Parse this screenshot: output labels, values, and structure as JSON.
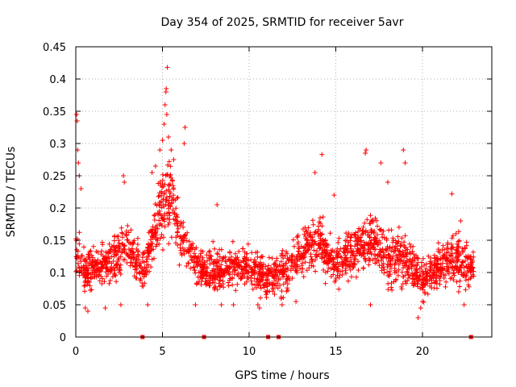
{
  "chart_data": {
    "type": "scatter",
    "title": "Day 354 of 2025, SRMTID for receiver 5avr",
    "xlabel": "GPS time / hours",
    "ylabel": "SRMTID / TECUs",
    "xlim": [
      0,
      24
    ],
    "ylim": [
      0,
      0.45
    ],
    "x_ticks": [
      0,
      5,
      10,
      15,
      20
    ],
    "x_tick_labels": [
      "0",
      "5",
      "10",
      "15",
      "20"
    ],
    "y_ticks": [
      0,
      0.05,
      0.1,
      0.15,
      0.2,
      0.25,
      0.3,
      0.35,
      0.4,
      0.45
    ],
    "y_tick_labels": [
      "0",
      "0.05",
      "0.1",
      "0.15",
      "0.2",
      "0.25",
      "0.3",
      "0.35",
      "0.4",
      "0.45"
    ],
    "grid": true,
    "marker": "plus",
    "color": "#ff0000",
    "zero_markers_x": [
      3.85,
      7.4,
      11.1,
      11.7,
      22.8
    ],
    "series": [
      {
        "name": "SRMTID",
        "trend": {
          "x": [
            0,
            0.5,
            1,
            2,
            3,
            4,
            4.5,
            5,
            5.5,
            6,
            7,
            8,
            9,
            10,
            11,
            12,
            13,
            14,
            15,
            16,
            17,
            18,
            19,
            20,
            21,
            22,
            23
          ],
          "y": [
            0.13,
            0.1,
            0.11,
            0.12,
            0.14,
            0.1,
            0.16,
            0.2,
            0.22,
            0.16,
            0.11,
            0.1,
            0.11,
            0.11,
            0.09,
            0.1,
            0.13,
            0.15,
            0.11,
            0.13,
            0.15,
            0.12,
            0.12,
            0.09,
            0.11,
            0.12,
            0.1
          ],
          "spread": [
            0.06,
            0.04,
            0.04,
            0.04,
            0.05,
            0.04,
            0.05,
            0.08,
            0.07,
            0.05,
            0.04,
            0.04,
            0.04,
            0.04,
            0.04,
            0.04,
            0.05,
            0.05,
            0.04,
            0.05,
            0.05,
            0.05,
            0.05,
            0.04,
            0.04,
            0.05,
            0.04
          ]
        },
        "n_points": 2200,
        "peaks": [
          {
            "x": 0.05,
            "y": 0.345
          },
          {
            "x": 0.08,
            "y": 0.335
          },
          {
            "x": 0.1,
            "y": 0.29
          },
          {
            "x": 0.15,
            "y": 0.27
          },
          {
            "x": 0.2,
            "y": 0.25
          },
          {
            "x": 0.3,
            "y": 0.23
          },
          {
            "x": 2.75,
            "y": 0.25
          },
          {
            "x": 2.8,
            "y": 0.24
          },
          {
            "x": 4.4,
            "y": 0.255
          },
          {
            "x": 4.6,
            "y": 0.265
          },
          {
            "x": 4.85,
            "y": 0.29
          },
          {
            "x": 5.0,
            "y": 0.305
          },
          {
            "x": 5.1,
            "y": 0.33
          },
          {
            "x": 5.15,
            "y": 0.36
          },
          {
            "x": 5.2,
            "y": 0.38
          },
          {
            "x": 5.22,
            "y": 0.385
          },
          {
            "x": 5.25,
            "y": 0.345
          },
          {
            "x": 5.28,
            "y": 0.418
          },
          {
            "x": 5.35,
            "y": 0.31
          },
          {
            "x": 5.5,
            "y": 0.29
          },
          {
            "x": 5.65,
            "y": 0.275
          },
          {
            "x": 6.3,
            "y": 0.325
          },
          {
            "x": 6.25,
            "y": 0.3
          },
          {
            "x": 8.15,
            "y": 0.205
          },
          {
            "x": 14.2,
            "y": 0.283
          },
          {
            "x": 13.8,
            "y": 0.255
          },
          {
            "x": 14.9,
            "y": 0.22
          },
          {
            "x": 16.75,
            "y": 0.29
          },
          {
            "x": 16.7,
            "y": 0.285
          },
          {
            "x": 17.6,
            "y": 0.27
          },
          {
            "x": 18.0,
            "y": 0.24
          },
          {
            "x": 18.9,
            "y": 0.29
          },
          {
            "x": 19.0,
            "y": 0.27
          },
          {
            "x": 21.7,
            "y": 0.222
          },
          {
            "x": 22.2,
            "y": 0.18
          }
        ],
        "lows": [
          {
            "x": 0.55,
            "y": 0.045
          },
          {
            "x": 0.7,
            "y": 0.04
          },
          {
            "x": 1.7,
            "y": 0.045
          },
          {
            "x": 2.6,
            "y": 0.05
          },
          {
            "x": 4.15,
            "y": 0.05
          },
          {
            "x": 6.9,
            "y": 0.05
          },
          {
            "x": 8.4,
            "y": 0.05
          },
          {
            "x": 9.1,
            "y": 0.05
          },
          {
            "x": 10.5,
            "y": 0.05
          },
          {
            "x": 10.6,
            "y": 0.045
          },
          {
            "x": 11.9,
            "y": 0.05
          },
          {
            "x": 12.7,
            "y": 0.055
          },
          {
            "x": 17.0,
            "y": 0.05
          },
          {
            "x": 19.75,
            "y": 0.03
          },
          {
            "x": 19.9,
            "y": 0.045
          },
          {
            "x": 20.0,
            "y": 0.055
          },
          {
            "x": 22.4,
            "y": 0.05
          }
        ]
      }
    ]
  }
}
